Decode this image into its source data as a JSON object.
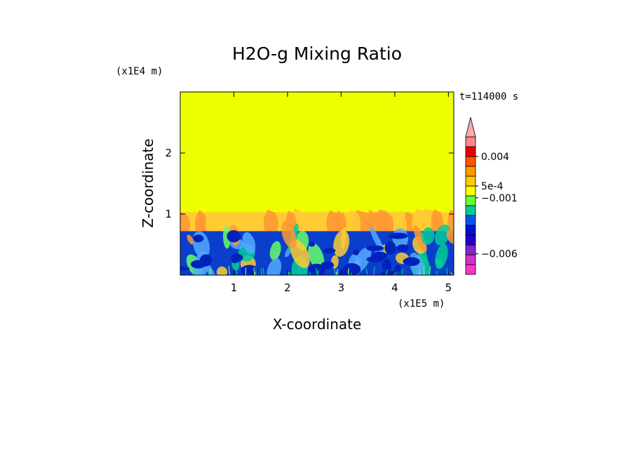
{
  "chart_data": {
    "type": "heatmap",
    "title": "H2O-g Mixing Ratio",
    "xlabel": "X-coordinate",
    "ylabel": "Z-coordinate",
    "x_scale_label": "(x1E5 m)",
    "y_scale_label": "(x1E4 m)",
    "time_label": "t=114000 s",
    "xlim": [
      0,
      5.1
    ],
    "ylim": [
      0,
      3.0
    ],
    "x_ticks": [
      {
        "value": 1,
        "label": "1"
      },
      {
        "value": 2,
        "label": "2"
      },
      {
        "value": 3,
        "label": "3"
      },
      {
        "value": 4,
        "label": "4"
      },
      {
        "value": 5,
        "label": "5"
      }
    ],
    "y_ticks": [
      {
        "value": 1,
        "label": "1"
      },
      {
        "value": 2,
        "label": "2"
      }
    ],
    "colorbar": {
      "levels": [
        {
          "color": "#ff33cc"
        },
        {
          "color": "#cc33cc"
        },
        {
          "color": "#8822cc"
        },
        {
          "color": "#2200cc"
        },
        {
          "color": "#0011cc"
        },
        {
          "color": "#0055ee"
        },
        {
          "color": "#00cc99"
        },
        {
          "color": "#66ff33"
        },
        {
          "color": "#ffff00"
        },
        {
          "color": "#ffcc00"
        },
        {
          "color": "#ff9900"
        },
        {
          "color": "#ff5500"
        },
        {
          "color": "#ee0000"
        },
        {
          "color": "#ff8888"
        }
      ],
      "extend_color": "#ffaaaa",
      "labels": [
        {
          "text": "0.004",
          "level": 12
        },
        {
          "text": "5e-4",
          "level": 9
        },
        {
          "text": "−0.001",
          "level": 7.8
        },
        {
          "text": "−0.006",
          "level": 2.1
        }
      ]
    },
    "regions": {
      "upper_color": "#eeff00",
      "band_color": "#ffcc33",
      "band_top": 1.03,
      "boundary_z": 0.72,
      "lower_color": "#0a3fcc",
      "lower_dark_color": "#0022bb",
      "plume_colors": [
        "#ff9933",
        "#ffcc33",
        "#66ff66",
        "#00cc99",
        "#55aaff"
      ]
    }
  }
}
